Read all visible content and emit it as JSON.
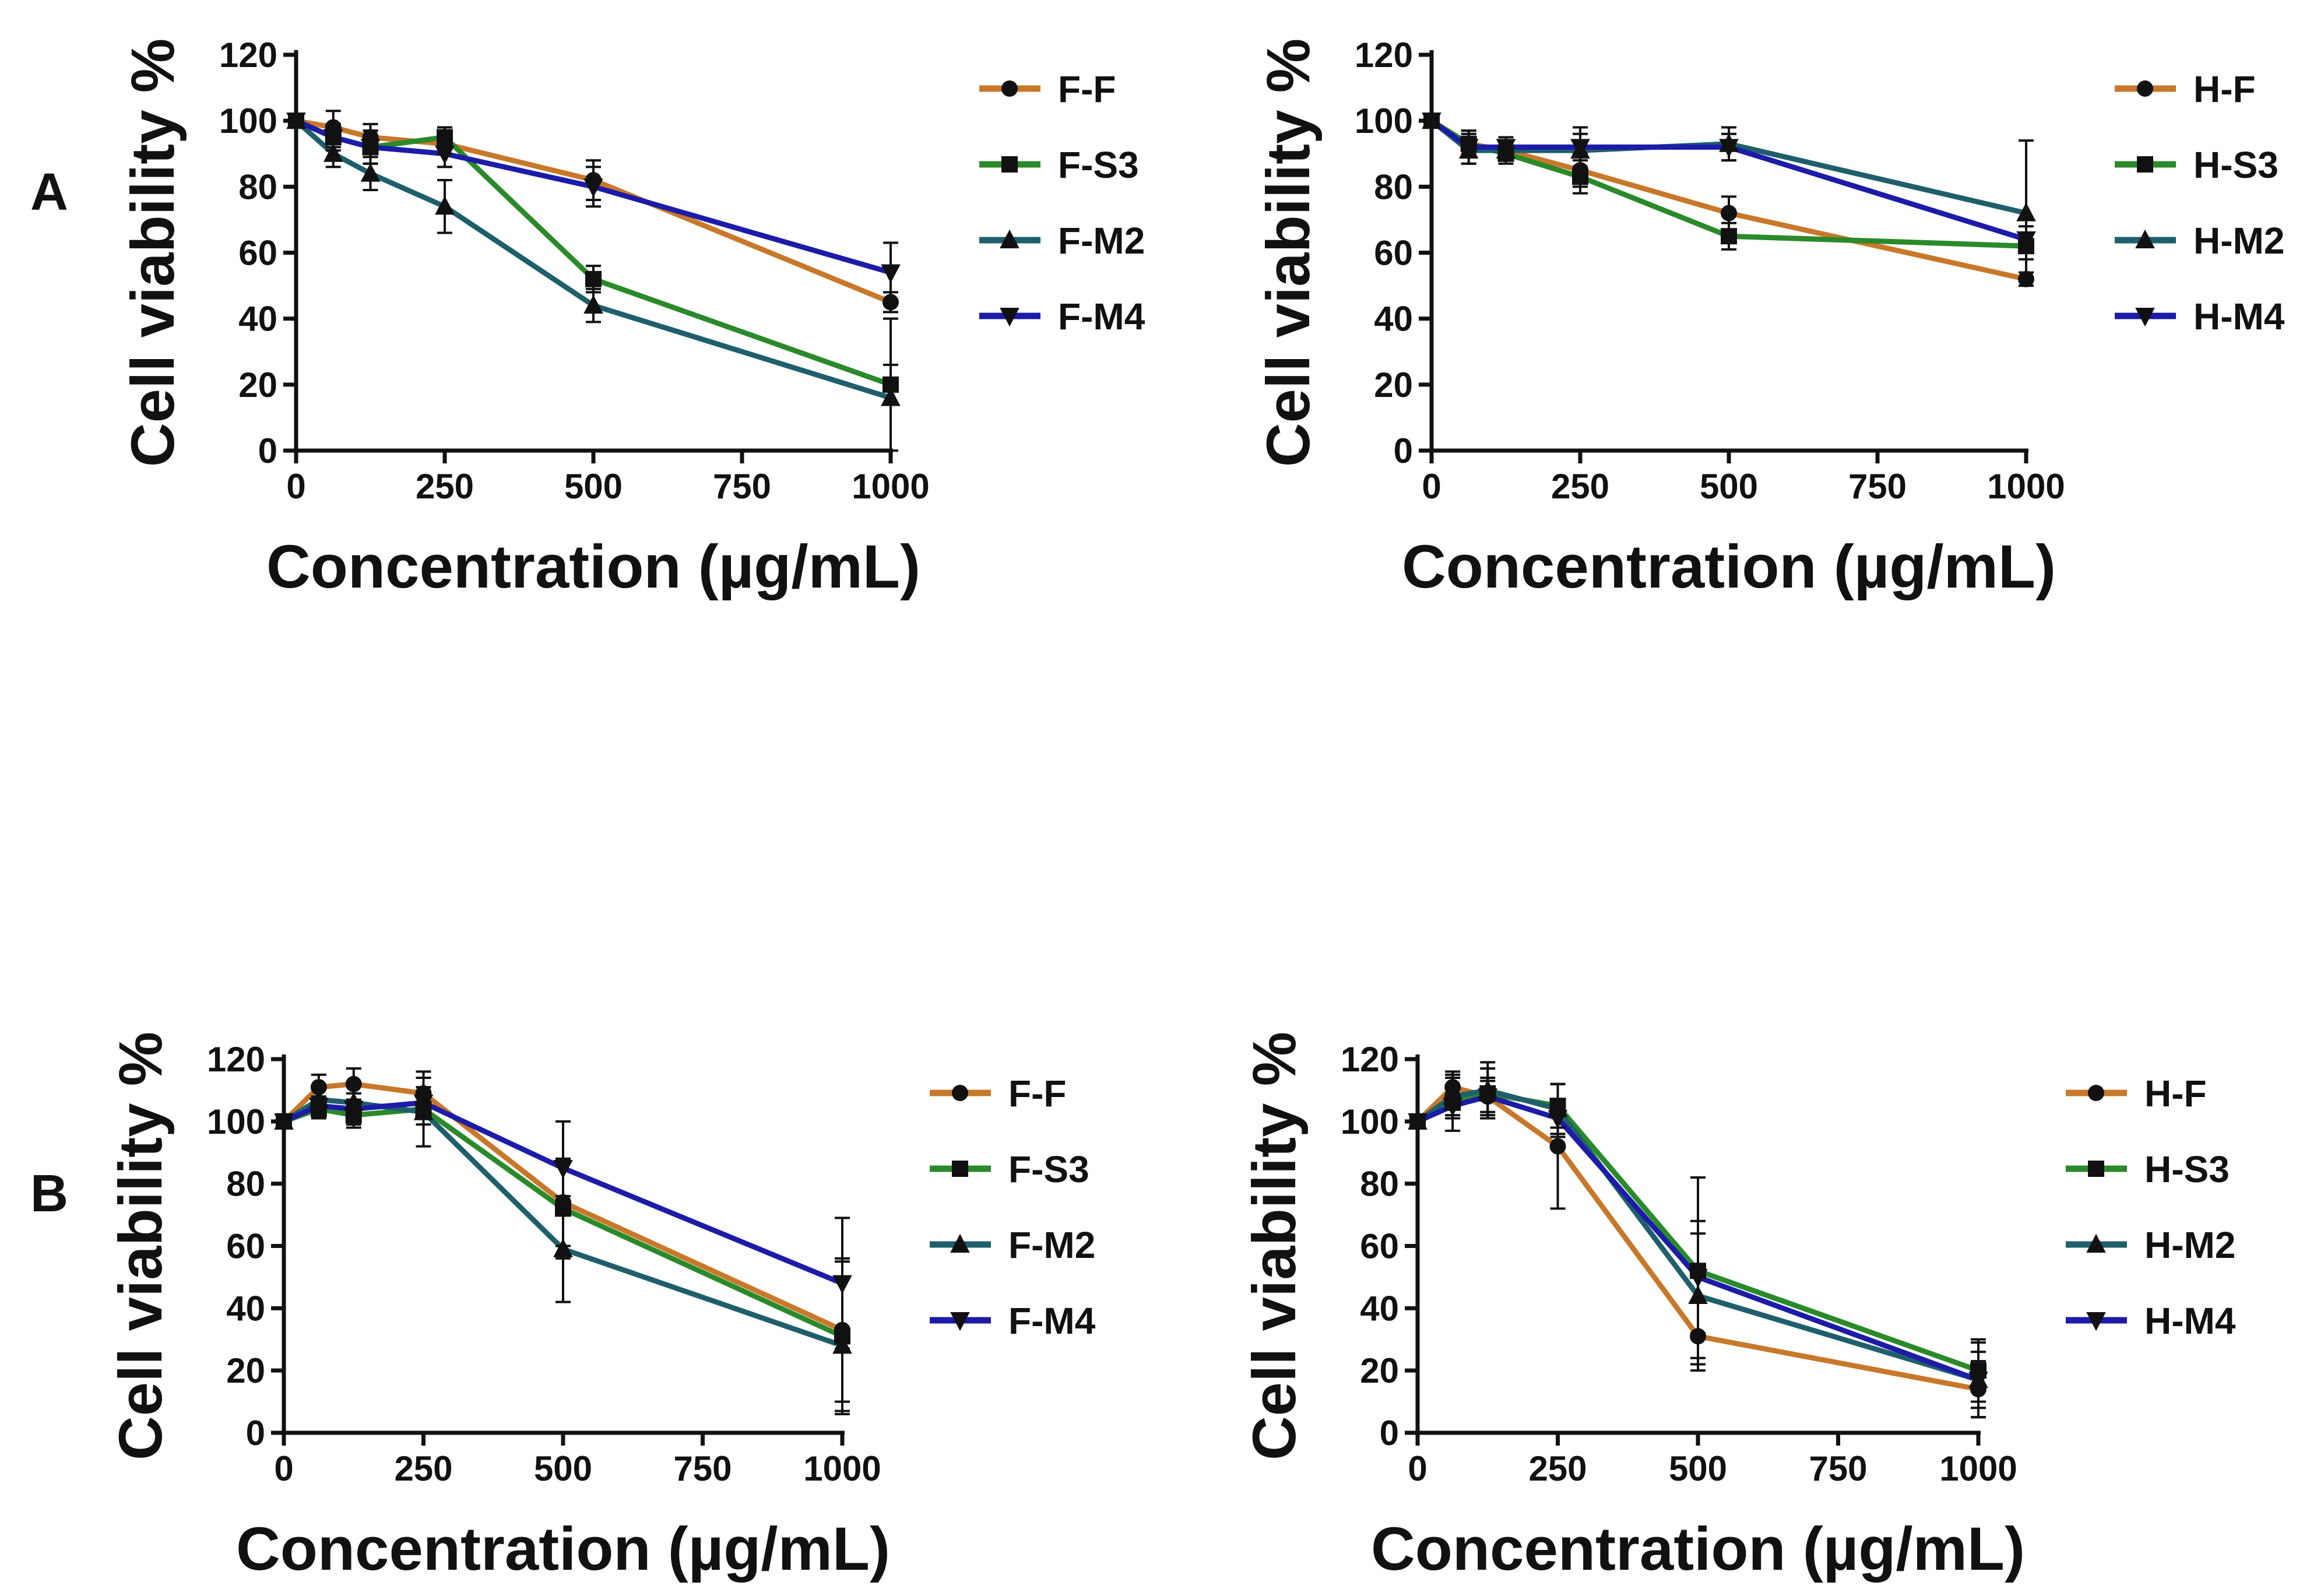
{
  "figure": {
    "panel_labels": [
      "A",
      "B"
    ]
  },
  "colors": {
    "orange": "#c8782a",
    "green": "#2a8a2a",
    "teal": "#1f5f6b",
    "blue": "#1c1ca8",
    "axis": "#111111"
  },
  "chart_data": [
    {
      "type": "line",
      "panel": "A",
      "title": "",
      "xlabel": "Concentration (µg/mL)",
      "ylabel": "Cell viability %",
      "x": [
        0,
        62.5,
        125,
        250,
        500,
        1000
      ],
      "xlim": [
        0,
        1000
      ],
      "ylim": [
        0,
        120
      ],
      "xticks": [
        0,
        250,
        500,
        750,
        1000
      ],
      "yticks": [
        0,
        20,
        40,
        60,
        80,
        100,
        120
      ],
      "legend": "right",
      "series": [
        {
          "name": "F-F",
          "color": "#c8782a",
          "marker": "circle",
          "values": [
            100,
            98,
            95,
            93,
            82,
            45
          ],
          "errors": [
            0,
            5,
            4,
            3,
            6,
            3
          ]
        },
        {
          "name": "F-S3",
          "color": "#2a8a2a",
          "marker": "square",
          "values": [
            100,
            95,
            92,
            95,
            52,
            20
          ],
          "errors": [
            0,
            3,
            5,
            3,
            4,
            6
          ]
        },
        {
          "name": "F-M2",
          "color": "#1f5f6b",
          "marker": "triangle-up",
          "values": [
            100,
            90,
            84,
            74,
            44,
            16
          ],
          "errors": [
            0,
            4,
            5,
            8,
            5,
            24
          ]
        },
        {
          "name": "F-M4",
          "color": "#1c1ca8",
          "marker": "triangle-down",
          "values": [
            100,
            95,
            92,
            90,
            80,
            54
          ],
          "errors": [
            0,
            4,
            5,
            4,
            6,
            9
          ]
        }
      ]
    },
    {
      "type": "line",
      "panel": "A",
      "title": "",
      "xlabel": "Concentration (µg/mL)",
      "ylabel": "Cell viability %",
      "x": [
        0,
        62.5,
        125,
        250,
        500,
        1000
      ],
      "xlim": [
        0,
        1000
      ],
      "ylim": [
        0,
        120
      ],
      "xticks": [
        0,
        250,
        500,
        750,
        1000
      ],
      "yticks": [
        0,
        20,
        40,
        60,
        80,
        100,
        120
      ],
      "legend": "right",
      "series": [
        {
          "name": "H-F",
          "color": "#c8782a",
          "marker": "circle",
          "values": [
            100,
            93,
            91,
            85,
            72,
            52
          ],
          "errors": [
            0,
            4,
            3,
            5,
            5,
            2
          ]
        },
        {
          "name": "H-S3",
          "color": "#2a8a2a",
          "marker": "square",
          "values": [
            100,
            93,
            90,
            83,
            65,
            62
          ],
          "errors": [
            0,
            3,
            3,
            5,
            4,
            4
          ]
        },
        {
          "name": "H-M2",
          "color": "#1f5f6b",
          "marker": "triangle-up",
          "values": [
            100,
            91,
            91,
            91,
            93,
            72
          ],
          "errors": [
            0,
            4,
            3,
            5,
            5,
            22
          ]
        },
        {
          "name": "H-M4",
          "color": "#1c1ca8",
          "marker": "triangle-down",
          "values": [
            100,
            92,
            92,
            92,
            92,
            64
          ],
          "errors": [
            0,
            5,
            3,
            6,
            4,
            4
          ]
        }
      ]
    },
    {
      "type": "line",
      "panel": "B",
      "title": "",
      "xlabel": "Concentration (µg/mL)",
      "ylabel": "Cell viability %",
      "x": [
        0,
        62.5,
        125,
        250,
        500,
        1000
      ],
      "xlim": [
        0,
        1000
      ],
      "ylim": [
        0,
        120
      ],
      "xticks": [
        0,
        250,
        500,
        750,
        1000
      ],
      "yticks": [
        0,
        20,
        40,
        60,
        80,
        100,
        120
      ],
      "legend": "right",
      "series": [
        {
          "name": "F-F",
          "color": "#c8782a",
          "marker": "circle",
          "values": [
            100,
            111,
            112,
            109,
            74,
            33
          ],
          "errors": [
            0,
            4,
            5,
            7,
            14,
            23
          ]
        },
        {
          "name": "F-S3",
          "color": "#2a8a2a",
          "marker": "square",
          "values": [
            100,
            104,
            102,
            104,
            72,
            31
          ],
          "errors": [
            0,
            3,
            4,
            5,
            16,
            24
          ]
        },
        {
          "name": "F-M2",
          "color": "#1f5f6b",
          "marker": "triangle-up",
          "values": [
            100,
            107,
            106,
            103,
            59,
            28
          ],
          "errors": [
            0,
            4,
            6,
            11,
            17,
            22
          ]
        },
        {
          "name": "F-M4",
          "color": "#1c1ca8",
          "marker": "triangle-down",
          "values": [
            100,
            105,
            104,
            106,
            85,
            48
          ],
          "errors": [
            0,
            3,
            5,
            5,
            15,
            21
          ]
        }
      ]
    },
    {
      "type": "line",
      "panel": "B",
      "title": "",
      "xlabel": "Concentration (µg/mL)",
      "ylabel": "Cell viability %",
      "x": [
        0,
        62.5,
        125,
        250,
        500,
        1000
      ],
      "xlim": [
        0,
        1000
      ],
      "ylim": [
        0,
        120
      ],
      "xticks": [
        0,
        250,
        500,
        750,
        1000
      ],
      "yticks": [
        0,
        20,
        40,
        60,
        80,
        100,
        120
      ],
      "legend": "right",
      "series": [
        {
          "name": "H-F",
          "color": "#c8782a",
          "marker": "circle",
          "values": [
            100,
            111,
            108,
            92,
            31,
            14
          ],
          "errors": [
            0,
            5,
            5,
            20,
            11,
            9
          ]
        },
        {
          "name": "H-S3",
          "color": "#2a8a2a",
          "marker": "square",
          "values": [
            100,
            106,
            109,
            105,
            52,
            20
          ],
          "errors": [
            0,
            9,
            8,
            7,
            30,
            10
          ]
        },
        {
          "name": "H-M2",
          "color": "#1f5f6b",
          "marker": "triangle-up",
          "values": [
            100,
            108,
            110,
            104,
            44,
            17
          ],
          "errors": [
            0,
            6,
            9,
            8,
            20,
            12
          ]
        },
        {
          "name": "H-M4",
          "color": "#1c1ca8",
          "marker": "triangle-down",
          "values": [
            100,
            105,
            108,
            101,
            50,
            17
          ],
          "errors": [
            0,
            4,
            6,
            6,
            18,
            9
          ]
        }
      ]
    }
  ]
}
